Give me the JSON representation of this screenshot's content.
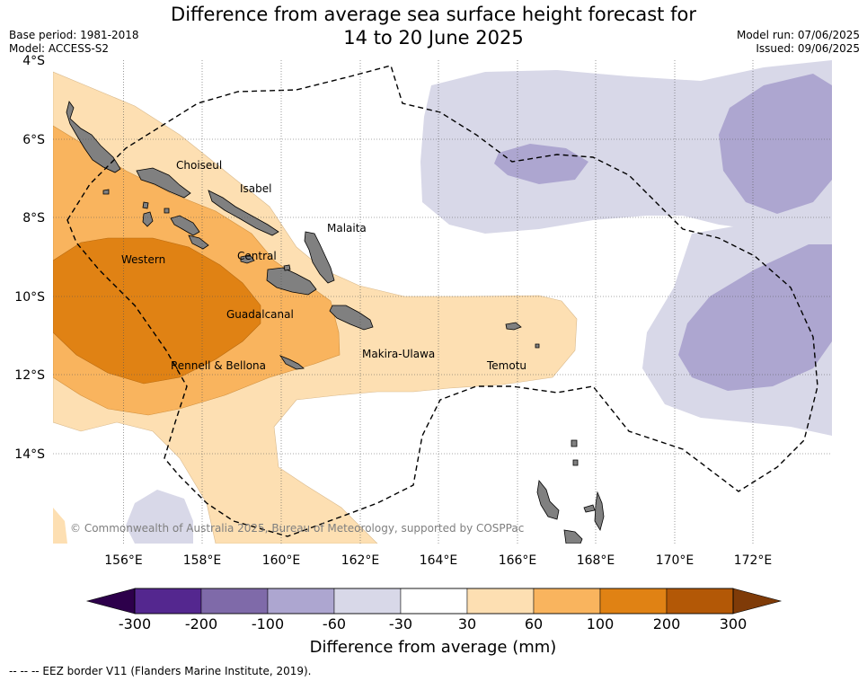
{
  "title": {
    "line1": "Difference from average sea surface height forecast for",
    "line2": "14 to 20 June 2025"
  },
  "meta_left": {
    "base_period": "Base period: 1981-2018",
    "model": "Model: ACCESS-S2"
  },
  "meta_right": {
    "model_run": "Model run: 07/06/2025",
    "issued": "Issued: 09/06/2025"
  },
  "axes": {
    "lat_ticks": [
      "4°S",
      "6°S",
      "8°S",
      "10°S",
      "12°S",
      "14°S"
    ],
    "lon_ticks": [
      "156°E",
      "158°E",
      "160°E",
      "162°E",
      "164°E",
      "166°E",
      "168°E",
      "170°E",
      "172°E"
    ],
    "lon_range": [
      154.2,
      174.0
    ],
    "lat_range": [
      -16.2,
      -4.0
    ],
    "gridlines": "dotted"
  },
  "places": [
    {
      "name": "Choiseul",
      "lon": 157.8,
      "lat": -6.65
    },
    {
      "name": "Isabel",
      "lon": 159.4,
      "lat": -7.15
    },
    {
      "name": "Malaita",
      "lon": 161.2,
      "lat": -8.45
    },
    {
      "name": "Western",
      "lon": 156.5,
      "lat": -9.25
    },
    {
      "name": "Central",
      "lon": 159.5,
      "lat": -9.15
    },
    {
      "name": "Guadalcanal",
      "lon": 159.7,
      "lat": -10.65
    },
    {
      "name": "Makira-Ulawa",
      "lon": 163.1,
      "lat": -11.6
    },
    {
      "name": "Temotu",
      "lon": 166.0,
      "lat": -11.9
    },
    {
      "name": "Rennell & Bellona",
      "lon": 158.3,
      "lat": -11.95
    }
  ],
  "copyright": "© Commonwealth of Australia 2025, Bureau of Meteorology, supported by COSPPac",
  "colorbar": {
    "title": "Difference from average (mm)",
    "labels": [
      "-300",
      "-200",
      "-100",
      "-60",
      "-30",
      "30",
      "60",
      "100",
      "200",
      "300"
    ],
    "colors": [
      "#54278f",
      "#7f6aa9",
      "#ada6d0",
      "#d8d8e8",
      "#ffffff",
      "#fddfb2",
      "#f9b45e",
      "#e08214",
      "#b35806"
    ],
    "under_color": "#2d004b",
    "over_color": "#7f3b08"
  },
  "eez_note": "--  --  -- EEZ border V11 (Flanders Marine Institute, 2019)."
}
